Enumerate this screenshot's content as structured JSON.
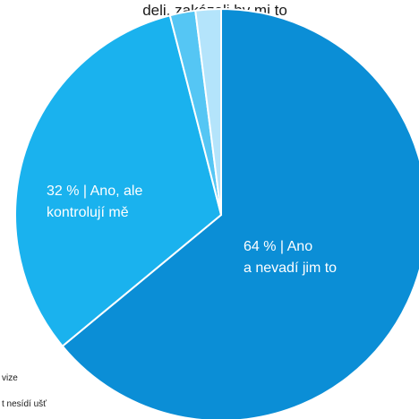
{
  "title": "deli, zakázali by mi to",
  "chart_data": {
    "type": "pie",
    "title": "deli, zakázali by mi to",
    "slices": [
      {
        "value": 64,
        "label_lines": [
          "64 % | Ano",
          "a nevadí jim to"
        ],
        "color": "#0b8ed6"
      },
      {
        "value": 32,
        "label_lines": [
          "32 % | Ano, ale",
          "kontrolují mě"
        ],
        "color": "#1ab2ee"
      },
      {
        "value": 2,
        "label_lines": [],
        "color": "#55c6f4"
      },
      {
        "value": 2,
        "label_lines": [],
        "color": "#b4e4fb"
      }
    ],
    "side_labels": [
      "vize",
      "t  nesídí ušť"
    ]
  }
}
